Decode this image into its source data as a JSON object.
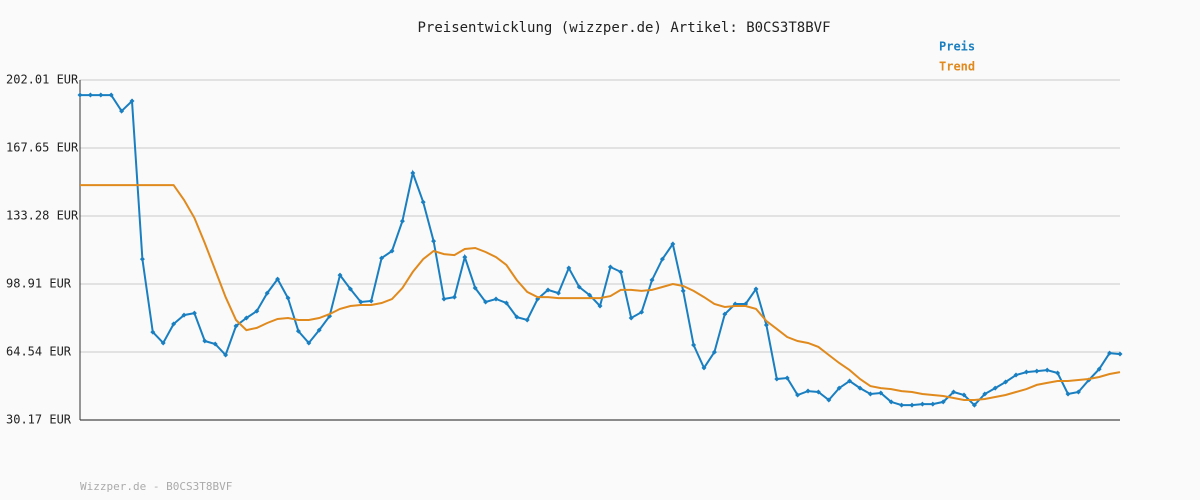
{
  "chart_data": {
    "type": "line",
    "title": "Preisentwicklung (wizzper.de) Artikel: B0CS3T8BVF",
    "footer": "Wizzper.de - B0CS3T8BVF",
    "ylim": [
      30.17,
      202.01
    ],
    "yticks": [
      {
        "value": 30.17,
        "label": "30.17 EUR"
      },
      {
        "value": 64.54,
        "label": "64.54 EUR"
      },
      {
        "value": 98.91,
        "label": "98.91 EUR"
      },
      {
        "value": 133.28,
        "label": "133.28 EUR"
      },
      {
        "value": 167.65,
        "label": "167.65 EUR"
      },
      {
        "value": 202.01,
        "label": "202.01 EUR"
      }
    ],
    "grid": true,
    "legend": "top-right",
    "series": [
      {
        "name": "Preis",
        "color": "#1a7fc0",
        "markers": true,
        "values": [
          194.4,
          194.4,
          194.4,
          194.4,
          186.3,
          191.4,
          111.5,
          74.6,
          69.1,
          78.7,
          83.2,
          84.2,
          70.1,
          68.6,
          63.0,
          77.7,
          81.7,
          85.2,
          94.3,
          101.4,
          91.8,
          75.1,
          69.1,
          75.6,
          82.7,
          103.4,
          96.4,
          89.8,
          90.3,
          112.0,
          115.6,
          130.7,
          155.0,
          140.3,
          120.6,
          91.3,
          92.3,
          112.5,
          96.9,
          89.8,
          91.3,
          89.3,
          82.2,
          80.7,
          91.3,
          95.9,
          94.3,
          107.0,
          97.4,
          93.3,
          87.8,
          107.5,
          105.0,
          81.7,
          84.7,
          100.9,
          111.5,
          119.1,
          95.4,
          68.1,
          56.5,
          64.5,
          83.7,
          88.8,
          88.8,
          96.4,
          78.2,
          50.9,
          51.4,
          42.8,
          44.8,
          44.3,
          40.3,
          46.3,
          49.9,
          46.3,
          43.3,
          43.8,
          39.3,
          37.7,
          37.7,
          38.2,
          38.2,
          39.3,
          44.3,
          42.8,
          37.7,
          43.3,
          46.3,
          49.4,
          52.9,
          54.4,
          54.9,
          55.4,
          53.9,
          43.3,
          44.3,
          50.4,
          55.9,
          64.0,
          63.5
        ]
      },
      {
        "name": "Trend",
        "color": "#e08a1e",
        "markers": false,
        "values": [
          148.9,
          148.9,
          148.9,
          148.9,
          148.9,
          148.9,
          148.9,
          148.9,
          148.9,
          148.9,
          141.4,
          132.3,
          119.6,
          106.0,
          92.3,
          80.7,
          75.6,
          76.7,
          79.2,
          81.2,
          81.7,
          80.7,
          80.7,
          81.7,
          83.7,
          86.3,
          87.8,
          88.3,
          88.3,
          89.3,
          91.3,
          96.9,
          105.0,
          111.5,
          115.6,
          114.0,
          113.5,
          116.6,
          117.1,
          115.1,
          112.5,
          108.5,
          100.9,
          94.9,
          92.3,
          92.3,
          91.8,
          91.8,
          91.8,
          91.8,
          91.8,
          92.8,
          95.9,
          95.9,
          95.4,
          95.9,
          97.4,
          98.9,
          97.9,
          95.4,
          92.3,
          88.8,
          87.3,
          87.8,
          87.8,
          86.3,
          80.2,
          76.2,
          72.1,
          70.1,
          69.1,
          67.1,
          63.0,
          59.0,
          55.4,
          50.9,
          47.3,
          46.3,
          45.8,
          44.8,
          44.3,
          43.3,
          42.8,
          42.3,
          41.3,
          40.3,
          40.3,
          40.8,
          41.8,
          42.8,
          44.3,
          45.8,
          47.9,
          48.9,
          49.9,
          49.9,
          50.4,
          50.9,
          51.9,
          53.4,
          54.4
        ]
      }
    ]
  }
}
